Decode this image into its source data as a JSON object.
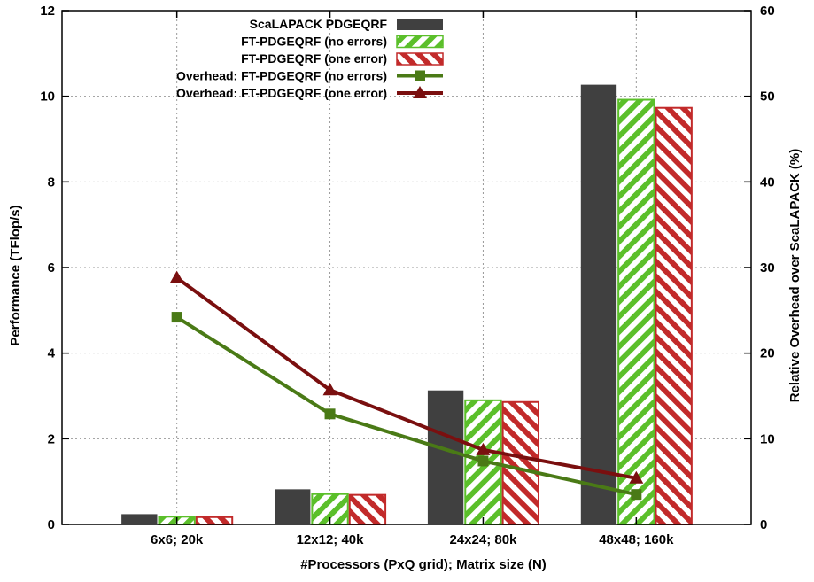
{
  "chart_data": {
    "type": "bar",
    "categories": [
      "6x6; 20k",
      "12x12; 40k",
      "24x24; 80k",
      "48x48; 160k"
    ],
    "xlabel": "#Processors (PxQ grid); Matrix size (N)",
    "ylabel": "Performance (TFlop/s)",
    "y2label": "Relative Overhead over ScaLAPACK (%)",
    "ylim": [
      0,
      12
    ],
    "y2lim": [
      0,
      60
    ],
    "yticks": [
      "0",
      "2",
      "4",
      "6",
      "8",
      "10",
      "12"
    ],
    "y2ticks": [
      "0",
      "10",
      "20",
      "30",
      "40",
      "50",
      "60"
    ],
    "grid": true,
    "legend_position": "top-left",
    "bar_series": [
      {
        "name": "ScaLAPACK PDGEQRF",
        "values": [
          0.24,
          0.82,
          3.13,
          10.27
        ],
        "color": "#404040",
        "pattern": "solid"
      },
      {
        "name": "FT-PDGEQRF (no errors)",
        "values": [
          0.18,
          0.71,
          2.9,
          9.92
        ],
        "color": "#5bbf2a",
        "pattern": "hatch"
      },
      {
        "name": "FT-PDGEQRF (one error)",
        "values": [
          0.17,
          0.69,
          2.86,
          9.73
        ],
        "color": "#c22a2a",
        "pattern": "hatch"
      }
    ],
    "line_series": [
      {
        "name": "Overhead: FT-PDGEQRF (no errors)",
        "values": [
          24.2,
          12.9,
          7.4,
          3.5
        ],
        "axis": "y2",
        "color": "#4a7a16",
        "marker": "square"
      },
      {
        "name": "Overhead: FT-PDGEQRF (one error)",
        "values": [
          28.8,
          15.7,
          8.7,
          5.4
        ],
        "axis": "y2",
        "color": "#7a0f0f",
        "marker": "triangle"
      }
    ]
  }
}
